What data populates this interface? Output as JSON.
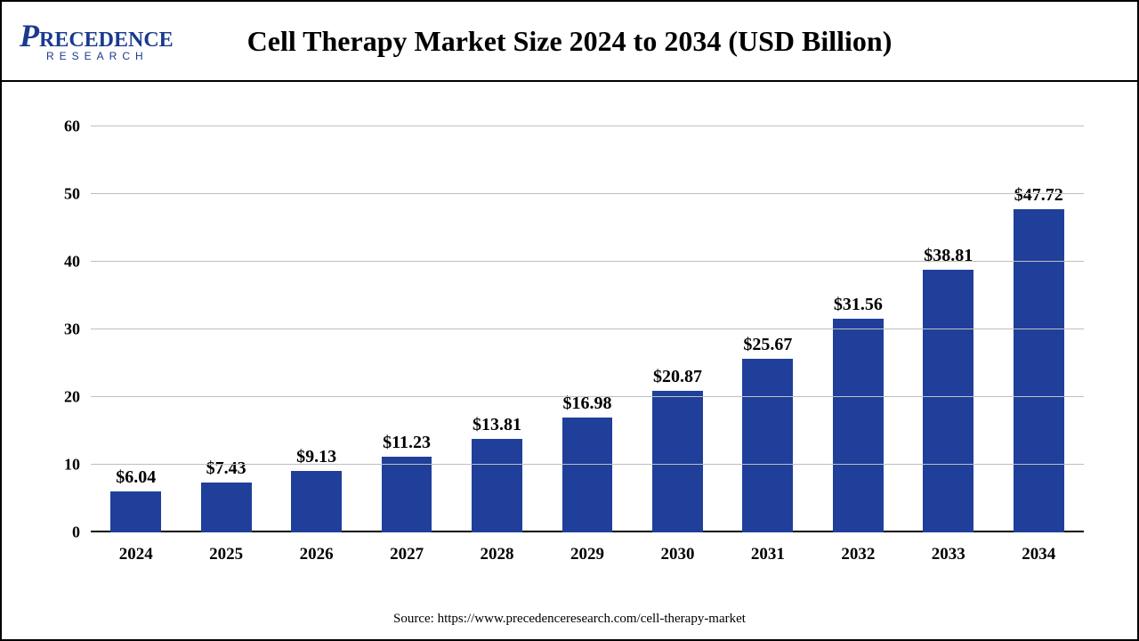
{
  "brand": {
    "name_html_big": "P",
    "name_html_rest": "RECEDENCE",
    "subtitle": "RESEARCH",
    "color": "#1a3a8f"
  },
  "title": "Cell Therapy Market Size 2024 to 2034 (USD Billion)",
  "source": "Source: https://www.precedenceresearch.com/cell-therapy-market",
  "chart": {
    "type": "bar",
    "categories": [
      "2024",
      "2025",
      "2026",
      "2027",
      "2028",
      "2029",
      "2030",
      "2031",
      "2032",
      "2033",
      "2034"
    ],
    "values": [
      6.04,
      7.43,
      9.13,
      11.23,
      13.81,
      16.98,
      20.87,
      25.67,
      31.56,
      38.81,
      47.72
    ],
    "value_labels": [
      "$6.04",
      "$7.43",
      "$9.13",
      "$11.23",
      "$13.81",
      "$16.98",
      "$20.87",
      "$25.67",
      "$31.56",
      "$38.81",
      "$47.72"
    ],
    "bar_color": "#1f3f9a",
    "ylim": [
      0,
      60
    ],
    "ytick_step": 10,
    "yticks": [
      0,
      10,
      20,
      30,
      40,
      50,
      60
    ],
    "grid_color": "#bfbfbf",
    "background_color": "#ffffff",
    "title_fontsize": 32,
    "label_fontsize": 20,
    "tick_fontsize": 18,
    "bar_width": 0.56
  }
}
